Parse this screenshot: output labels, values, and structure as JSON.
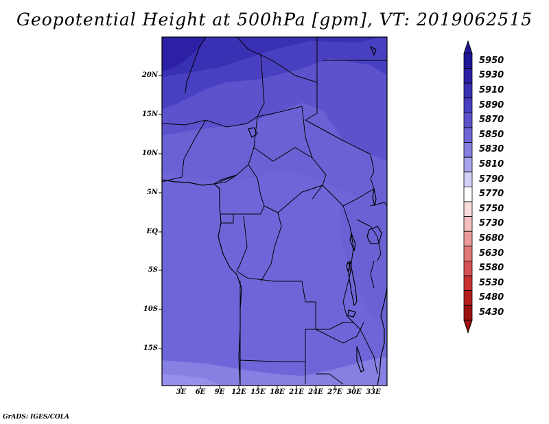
{
  "title": "Geopotential Height at 500hPa [gpm], VT: 2019062515",
  "credit": "GrADS: IGES/COLA",
  "map": {
    "lat_ticks": [
      "20N",
      "15N",
      "10N",
      "5N",
      "EQ",
      "5S",
      "10S",
      "15S"
    ],
    "lon_ticks": [
      "3E",
      "6E",
      "9E",
      "12E",
      "15E",
      "18E",
      "21E",
      "24E",
      "27E",
      "30E",
      "33E"
    ]
  },
  "colorbar": {
    "levels": [
      "5950",
      "5930",
      "5910",
      "5890",
      "5870",
      "5850",
      "5830",
      "5810",
      "5790",
      "5770",
      "5750",
      "5730",
      "5680",
      "5630",
      "5580",
      "5530",
      "5480",
      "5430"
    ],
    "colors": [
      "#1e1696",
      "#2c20a4",
      "#3a30b4",
      "#4840c0",
      "#5c52cc",
      "#6e66d8",
      "#8680e2",
      "#a8a4ec",
      "#d4d2f6",
      "#ffffff",
      "#f8dcdc",
      "#f4c0c0",
      "#ec9c9c",
      "#e27878",
      "#d85454",
      "#cc3232",
      "#b41e1e",
      "#9c1010"
    ]
  }
}
